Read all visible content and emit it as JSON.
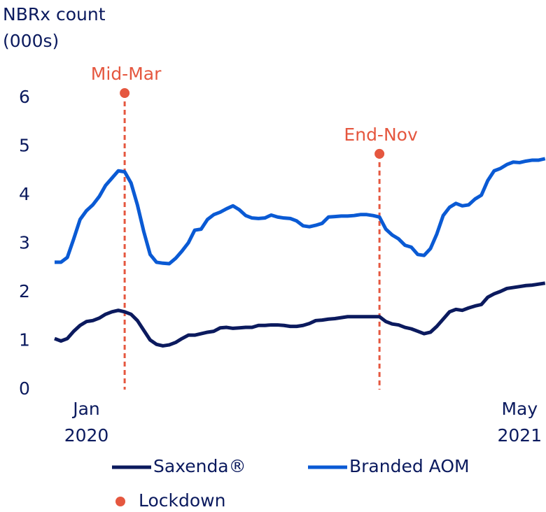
{
  "chart_data": {
    "type": "line",
    "y_label": "NBRx count\n(000s)",
    "categories": [
      null,
      null,
      null,
      null,
      null,
      "Jan\n2020",
      null,
      null,
      null,
      null,
      null,
      null,
      null,
      null,
      null,
      null,
      null,
      null,
      null,
      null,
      null,
      null,
      null,
      null,
      null,
      null,
      null,
      null,
      null,
      null,
      null,
      null,
      null,
      null,
      null,
      null,
      null,
      null,
      null,
      null,
      null,
      null,
      null,
      null,
      null,
      null,
      null,
      null,
      null,
      null,
      null,
      null,
      null,
      null,
      null,
      null,
      null,
      null,
      null,
      null,
      null,
      null,
      null,
      null,
      null,
      null,
      null,
      null,
      null,
      null,
      null,
      null,
      null,
      "May\n2021",
      null,
      null,
      null,
      null
    ],
    "series": [
      {
        "name": "Saxenda®",
        "color": "#0b1a5e",
        "values": [
          1.05,
          1.0,
          1.05,
          1.2,
          1.32,
          1.4,
          1.42,
          1.47,
          1.55,
          1.6,
          1.63,
          1.6,
          1.55,
          1.42,
          1.22,
          1.02,
          0.93,
          0.9,
          0.92,
          0.97,
          1.05,
          1.12,
          1.12,
          1.15,
          1.18,
          1.2,
          1.27,
          1.28,
          1.26,
          1.27,
          1.28,
          1.28,
          1.32,
          1.32,
          1.33,
          1.33,
          1.32,
          1.3,
          1.3,
          1.32,
          1.36,
          1.42,
          1.43,
          1.45,
          1.46,
          1.48,
          1.5,
          1.5,
          1.5,
          1.5,
          1.5,
          1.5,
          1.4,
          1.35,
          1.33,
          1.28,
          1.25,
          1.2,
          1.15,
          1.18,
          1.3,
          1.45,
          1.6,
          1.65,
          1.63,
          1.68,
          1.72,
          1.75,
          1.9,
          1.97,
          2.02,
          2.08,
          2.1,
          2.12,
          2.14,
          2.15,
          2.17,
          2.19
        ]
      },
      {
        "name": "Branded AOM",
        "color": "#0a5ad4",
        "values": [
          2.62,
          2.62,
          2.72,
          3.1,
          3.5,
          3.68,
          3.8,
          3.97,
          4.2,
          4.35,
          4.5,
          4.48,
          4.25,
          3.8,
          3.25,
          2.78,
          2.62,
          2.6,
          2.59,
          2.7,
          2.85,
          3.02,
          3.28,
          3.3,
          3.5,
          3.6,
          3.65,
          3.72,
          3.78,
          3.7,
          3.58,
          3.53,
          3.52,
          3.53,
          3.59,
          3.55,
          3.53,
          3.52,
          3.47,
          3.37,
          3.35,
          3.38,
          3.42,
          3.55,
          3.56,
          3.57,
          3.57,
          3.58,
          3.6,
          3.6,
          3.58,
          3.55,
          3.3,
          3.18,
          3.1,
          2.97,
          2.93,
          2.78,
          2.76,
          2.9,
          3.2,
          3.58,
          3.75,
          3.83,
          3.78,
          3.8,
          3.92,
          4.0,
          4.3,
          4.5,
          4.55,
          4.63,
          4.68,
          4.67,
          4.7,
          4.72,
          4.72,
          4.75
        ]
      }
    ],
    "lockdowns": {
      "name": "Lockdown",
      "color": "#e5573f",
      "events": [
        {
          "label": "Mid-Mar",
          "x": 11,
          "y": 6.1
        },
        {
          "label": "End-Nov",
          "x": 51,
          "y": 4.85
        }
      ]
    },
    "ylim": [
      0,
      6
    ],
    "yticks": [
      0,
      1,
      2,
      3,
      4,
      5,
      6
    ],
    "grid": false
  }
}
